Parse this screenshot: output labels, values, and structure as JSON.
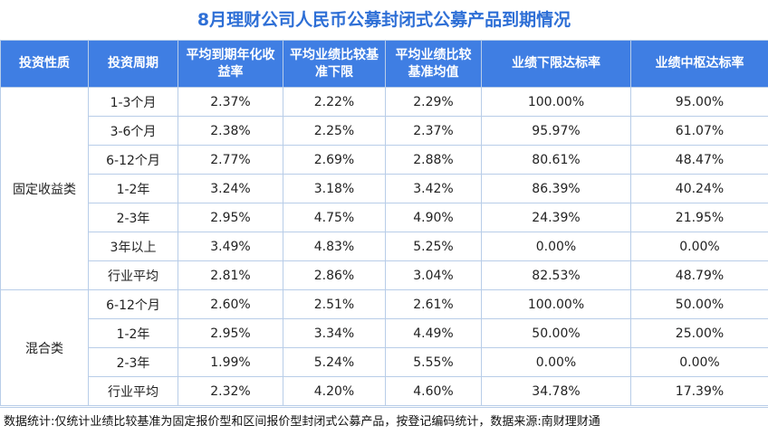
{
  "title": "8月理财公司人民币公募封闭式公募产品到期情况",
  "headers": [
    "投资性质",
    "投资周期",
    "平均到期年化收益率",
    "平均业绩比较基准下限",
    "平均业绩比较基准均值",
    "业绩下限达标率",
    "业绩中枢达标率"
  ],
  "groups": [
    {
      "category": "固定收益类",
      "rows": [
        [
          "1-3个月",
          "2.37%",
          "2.22%",
          "2.29%",
          "100.00%",
          "95.00%"
        ],
        [
          "3-6个月",
          "2.38%",
          "2.25%",
          "2.37%",
          "95.97%",
          "61.07%"
        ],
        [
          "6-12个月",
          "2.77%",
          "2.69%",
          "2.88%",
          "80.61%",
          "48.47%"
        ],
        [
          "1-2年",
          "3.24%",
          "3.18%",
          "3.42%",
          "86.39%",
          "40.24%"
        ],
        [
          "2-3年",
          "2.95%",
          "4.75%",
          "4.90%",
          "24.39%",
          "21.95%"
        ],
        [
          "3年以上",
          "3.49%",
          "4.83%",
          "5.25%",
          "0.00%",
          "0.00%"
        ],
        [
          "行业平均",
          "2.81%",
          "2.86%",
          "3.04%",
          "82.53%",
          "48.79%"
        ]
      ]
    },
    {
      "category": "混合类",
      "rows": [
        [
          "6-12个月",
          "2.60%",
          "2.51%",
          "2.61%",
          "100.00%",
          "50.00%"
        ],
        [
          "1-2年",
          "2.95%",
          "3.34%",
          "4.49%",
          "50.00%",
          "25.00%"
        ],
        [
          "2-3年",
          "1.99%",
          "5.24%",
          "5.55%",
          "0.00%",
          "0.00%"
        ],
        [
          "行业平均",
          "2.32%",
          "4.20%",
          "4.60%",
          "34.78%",
          "17.39%"
        ]
      ]
    }
  ],
  "footer": "数据统计:仅统计业绩比较基准为固定报价型和区间报价型封闭式公募产品，按登记编码统计，数据来源:南财理财通"
}
